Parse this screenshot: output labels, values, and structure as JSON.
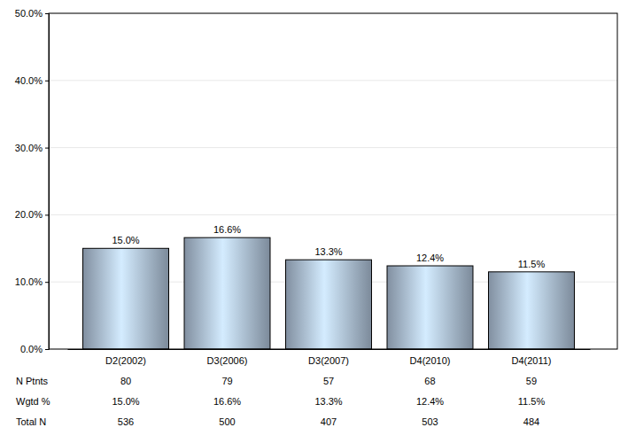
{
  "chart_data": {
    "type": "bar",
    "categories": [
      "D2(2002)",
      "D3(2006)",
      "D3(2007)",
      "D4(2010)",
      "D4(2011)"
    ],
    "values": [
      15.0,
      16.6,
      13.3,
      12.4,
      11.5
    ],
    "value_labels": [
      "15.0%",
      "16.6%",
      "13.3%",
      "12.4%",
      "11.5%"
    ],
    "data_labels": true,
    "color": "#9aabbf",
    "ylim": [
      0,
      50
    ],
    "yticks": [
      {
        "value": 0,
        "label": "0.0%"
      },
      {
        "value": 10,
        "label": "10.0%"
      },
      {
        "value": 20,
        "label": "20.0%"
      },
      {
        "value": 30,
        "label": "30.0%"
      },
      {
        "value": 40,
        "label": "40.0%"
      },
      {
        "value": 50,
        "label": "50.0%"
      }
    ],
    "grid": true,
    "table": {
      "rows": [
        {
          "label": "N Ptnts",
          "values": [
            80,
            79,
            57,
            68,
            59
          ]
        },
        {
          "label": "Wgtd %",
          "values": [
            15.0,
            16.6,
            13.3,
            12.4,
            11.5
          ],
          "value_labels": [
            "15.0%",
            "16.6%",
            "13.3%",
            "12.4%",
            "11.5%"
          ]
        },
        {
          "label": "Total N",
          "values": [
            536,
            500,
            407,
            503,
            484
          ]
        }
      ]
    }
  }
}
